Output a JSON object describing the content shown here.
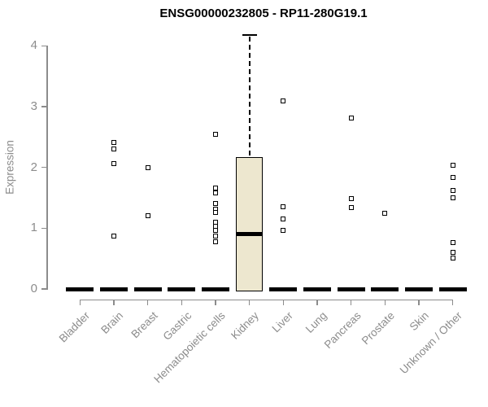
{
  "title": "ENSG00000232805 - RP11-280G19.1",
  "y_axis": {
    "label": "Expression",
    "tick_labels": [
      "0",
      "1",
      "2",
      "3",
      "4"
    ]
  },
  "colors": {
    "box_fill": "#EDE7CF",
    "box_border": "#000000",
    "marker": "#000000",
    "axis": "#8c8c8c",
    "title_text": "#000000",
    "background": "#ffffff"
  },
  "chart_data": {
    "type": "boxplot",
    "title": "ENSG00000232805 - RP11-280G19.1",
    "xlabel": "",
    "ylabel": "Expression",
    "ylim": [
      0,
      4
    ],
    "yticks": [
      0,
      1,
      2,
      3,
      4
    ],
    "grid": false,
    "legend": false,
    "categories": [
      "Bladder",
      "Brain",
      "Breast",
      "Gastric",
      "Hematopoietic cells",
      "Kidney",
      "Liver",
      "Lung",
      "Pancreas",
      "Prostate",
      "Skin",
      "Unknown / Other"
    ],
    "boxes": [
      {
        "q1": 0,
        "median": 0,
        "q3": 0,
        "whisker_high": 0
      },
      {
        "q1": 0,
        "median": 0,
        "q3": 0,
        "whisker_high": 0
      },
      {
        "q1": 0,
        "median": 0,
        "q3": 0,
        "whisker_high": 0
      },
      {
        "q1": 0,
        "median": 0,
        "q3": 0,
        "whisker_high": 0
      },
      {
        "q1": 0,
        "median": 0,
        "q3": 0,
        "whisker_high": 0
      },
      {
        "q1": 0,
        "median": 0.9,
        "q3": 2.17,
        "whisker_high": 4.18
      },
      {
        "q1": 0,
        "median": 0,
        "q3": 0,
        "whisker_high": 0
      },
      {
        "q1": 0,
        "median": 0,
        "q3": 0,
        "whisker_high": 0
      },
      {
        "q1": 0,
        "median": 0,
        "q3": 0,
        "whisker_high": 0
      },
      {
        "q1": 0,
        "median": 0,
        "q3": 0,
        "whisker_high": 0
      },
      {
        "q1": 0,
        "median": 0,
        "q3": 0,
        "whisker_high": 0
      },
      {
        "q1": 0,
        "median": 0,
        "q3": 0,
        "whisker_high": 0
      }
    ],
    "points": [
      [],
      [
        2.41,
        2.3,
        2.06,
        0.87
      ],
      [
        2.0,
        1.21
      ],
      [],
      [
        2.55,
        1.66,
        1.58,
        1.41,
        1.31,
        1.26,
        1.1,
        1.03,
        0.97,
        0.87,
        0.78
      ],
      [],
      [
        3.1,
        1.35,
        1.15,
        0.96
      ],
      [],
      [
        2.81,
        1.49,
        1.34
      ],
      [
        1.24
      ],
      [],
      [
        2.03,
        1.83,
        1.62,
        1.5,
        0.76,
        0.6,
        0.51
      ]
    ]
  }
}
